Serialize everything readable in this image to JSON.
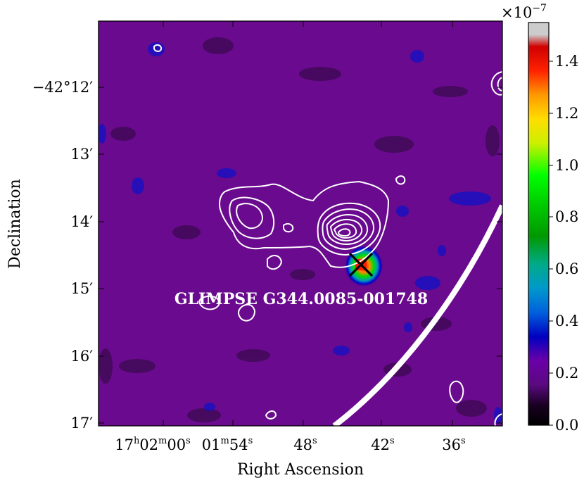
{
  "figure": {
    "xlabel": "Right Ascension",
    "ylabel": "Declination",
    "ra_ticks": [
      {
        "h": "17",
        "m": "02",
        "s": "00",
        "label_type": "hms"
      },
      {
        "m": "01",
        "s": "54",
        "label_type": "ms"
      },
      {
        "s": "48",
        "label_type": "s"
      },
      {
        "s": "42",
        "label_type": "s"
      },
      {
        "s": "36",
        "label_type": "s"
      }
    ],
    "dec_ticks": [
      {
        "text": "−42°12′"
      },
      {
        "text": "13′"
      },
      {
        "text": "14′"
      },
      {
        "text": "15′"
      },
      {
        "text": "16′"
      },
      {
        "text": "17′"
      }
    ],
    "source_label": "GLIMPSE G344.0085-001748",
    "marker": "x-cross"
  },
  "colorbar": {
    "multiplier": "×10",
    "exponent": "−7",
    "colormap": "nipy_spectral",
    "min": 0.0,
    "max": 1.55,
    "ticks": [
      "0.0",
      "0.2",
      "0.4",
      "0.6",
      "0.8",
      "1.0",
      "1.2",
      "1.4"
    ]
  },
  "colors": {
    "background": "#6a0a8e",
    "contour": "#ffffff",
    "frame": "#000000"
  }
}
